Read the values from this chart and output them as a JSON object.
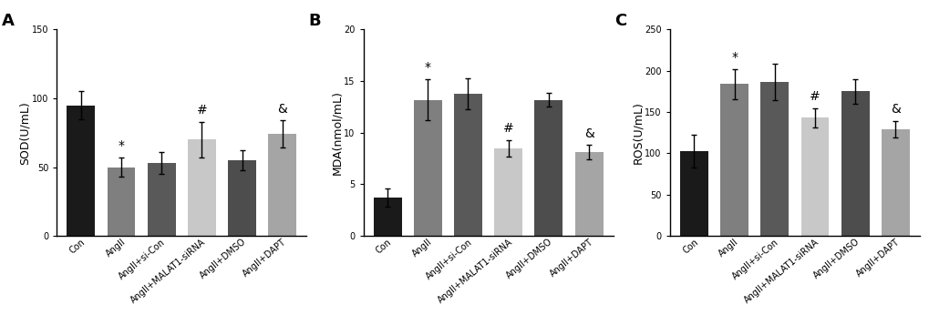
{
  "panels": [
    {
      "label": "A",
      "ylabel": "SOD(U/mL)",
      "ylim": [
        0,
        150
      ],
      "yticks": [
        0,
        50,
        100,
        150
      ],
      "categories": [
        "Con",
        "AngII",
        "AngII+si-Con",
        "AngII+MALAT1-siRNA",
        "AngII+DMSO",
        "AngII+DAPT"
      ],
      "values": [
        95,
        50,
        53,
        70,
        55,
        74
      ],
      "errors": [
        10,
        7,
        8,
        13,
        7,
        10
      ],
      "colors": [
        "#1a1a1a",
        "#7f7f7f",
        "#595959",
        "#c8c8c8",
        "#4d4d4d",
        "#a5a5a5"
      ],
      "annotations": [
        "",
        "*",
        "",
        "#",
        "",
        "&"
      ]
    },
    {
      "label": "B",
      "ylabel": "MDA(nmol/mL)",
      "ylim": [
        0,
        20
      ],
      "yticks": [
        0,
        5,
        10,
        15,
        20
      ],
      "categories": [
        "Con",
        "AngII",
        "AngII+si-Con",
        "AngII+MALAT1-siRNA",
        "AngII+DMSO",
        "AngII+DAPT"
      ],
      "values": [
        3.7,
        13.2,
        13.8,
        8.5,
        13.2,
        8.1
      ],
      "errors": [
        0.9,
        2.0,
        1.5,
        0.8,
        0.7,
        0.7
      ],
      "colors": [
        "#1a1a1a",
        "#7f7f7f",
        "#595959",
        "#c8c8c8",
        "#4d4d4d",
        "#a5a5a5"
      ],
      "annotations": [
        "",
        "*",
        "",
        "#",
        "",
        "&"
      ]
    },
    {
      "label": "C",
      "ylabel": "ROS(U/mL)",
      "ylim": [
        0,
        250
      ],
      "yticks": [
        0,
        50,
        100,
        150,
        200,
        250
      ],
      "categories": [
        "Con",
        "AngII",
        "AngII+si-Con",
        "AngII+MALAT1-siRNA",
        "AngII+DMSO",
        "AngII+DAPT"
      ],
      "values": [
        103,
        184,
        187,
        143,
        175,
        129
      ],
      "errors": [
        20,
        18,
        22,
        12,
        15,
        10
      ],
      "colors": [
        "#1a1a1a",
        "#7f7f7f",
        "#595959",
        "#c8c8c8",
        "#4d4d4d",
        "#a5a5a5"
      ],
      "annotations": [
        "",
        "*",
        "",
        "#",
        "",
        "&"
      ]
    }
  ],
  "background_color": "#ffffff",
  "bar_width": 0.7,
  "tick_label_fontsize": 7,
  "ylabel_fontsize": 9,
  "panel_label_fontsize": 13
}
